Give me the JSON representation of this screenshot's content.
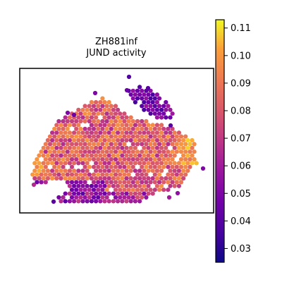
{
  "chart_data": {
    "type": "heatmap",
    "subtype": "spatial-hexbin",
    "title": "ZH881inf",
    "subtitle": "JUND activity",
    "xlabel": "",
    "ylabel": "",
    "grid": false,
    "colormap": "plasma",
    "colorbar": {
      "min": 0.025,
      "max": 0.113,
      "ticks": [
        0.03,
        0.04,
        0.05,
        0.06,
        0.07,
        0.08,
        0.09,
        0.1,
        0.11
      ],
      "tick_labels": [
        "0.03",
        "0.04",
        "0.05",
        "0.06",
        "0.07",
        "0.08",
        "0.09",
        "0.10",
        "0.11"
      ]
    },
    "regions": [
      {
        "name": "tissue-body",
        "value_range": [
          0.06,
          0.1
        ]
      },
      {
        "name": "left-edge",
        "value_range": [
          0.075,
          0.1
        ]
      },
      {
        "name": "right-edge",
        "value_range": [
          0.085,
          0.105
        ]
      },
      {
        "name": "upper-right-lobe",
        "value_range": [
          0.035,
          0.06
        ]
      },
      {
        "name": "lower-left-lobe",
        "value_range": [
          0.04,
          0.065
        ]
      }
    ]
  }
}
